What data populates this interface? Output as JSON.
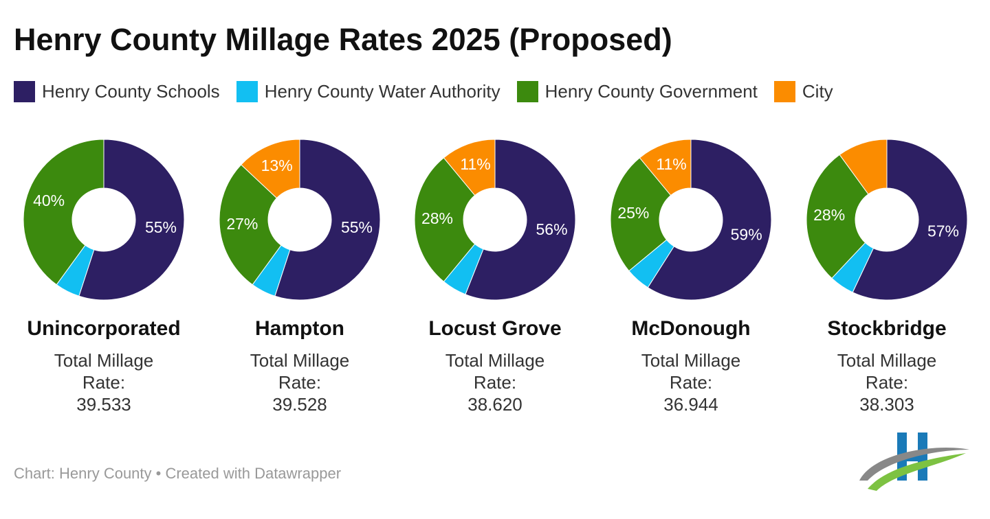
{
  "title": "Henry County Millage Rates 2025 (Proposed)",
  "legend": {
    "labels": [
      "Henry County Schools",
      "Henry County Water Authority",
      "Henry County Government",
      "City"
    ],
    "colors": [
      "#2d1f63",
      "#12bff2",
      "#3c8a0e",
      "#fb8c00"
    ]
  },
  "source": "Chart: Henry County • Created with Datawrapper",
  "chart_data": [
    {
      "type": "donut",
      "title": "Unincorporated",
      "subtitle": "Total Millage Rate:",
      "total": "39.533",
      "values": [
        55,
        5,
        40,
        0
      ],
      "value_labels": [
        "55%",
        null,
        "40%",
        null
      ]
    },
    {
      "type": "donut",
      "title": "Hampton",
      "subtitle": "Total Millage Rate:",
      "total": "39.528",
      "values": [
        55,
        5,
        27,
        13
      ],
      "value_labels": [
        "55%",
        null,
        "27%",
        "13%"
      ]
    },
    {
      "type": "donut",
      "title": "Locust Grove",
      "subtitle": "Total Millage Rate:",
      "total": "38.620",
      "values": [
        56,
        5,
        28,
        11
      ],
      "value_labels": [
        "56%",
        null,
        "28%",
        "11%"
      ]
    },
    {
      "type": "donut",
      "title": "McDonough",
      "subtitle": "Total Millage Rate:",
      "total": "36.944",
      "values": [
        59,
        5,
        25,
        11
      ],
      "value_labels": [
        "59%",
        null,
        "25%",
        "11%"
      ]
    },
    {
      "type": "donut",
      "title": "Stockbridge",
      "subtitle": "Total Millage Rate:",
      "total": "38.303",
      "values": [
        57,
        5,
        28,
        10
      ],
      "value_labels": [
        "57%",
        null,
        "28%",
        null
      ]
    }
  ]
}
